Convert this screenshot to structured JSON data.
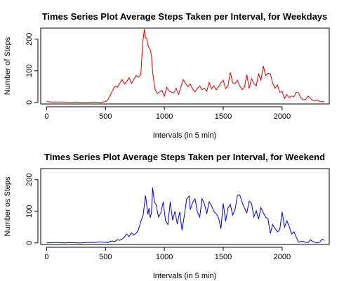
{
  "chart_data": [
    {
      "type": "line",
      "title": "Times Series Plot Average Steps Taken per Interval, for Weekdays",
      "xlabel": "Intervals (in 5 min)",
      "ylabel": "Number of Steps",
      "xlim": [
        -50,
        2400
      ],
      "ylim": [
        -5,
        235
      ],
      "xticks": [
        0,
        500,
        1000,
        1500,
        2000
      ],
      "yticks": [
        0,
        100,
        200
      ],
      "color": "#d40000",
      "series": [
        {
          "x": [
            0,
            50,
            100,
            150,
            200,
            250,
            300,
            350,
            400,
            450,
            500,
            520,
            540,
            560,
            580,
            600,
            620,
            640,
            660,
            680,
            700,
            720,
            740,
            760,
            780,
            800,
            815,
            830,
            840,
            850,
            860,
            870,
            880,
            890,
            900,
            920,
            940,
            960,
            980,
            1000,
            1020,
            1040,
            1060,
            1080,
            1100,
            1120,
            1140,
            1160,
            1180,
            1200,
            1220,
            1240,
            1260,
            1280,
            1300,
            1320,
            1340,
            1360,
            1380,
            1400,
            1420,
            1440,
            1460,
            1480,
            1500,
            1520,
            1540,
            1560,
            1580,
            1600,
            1620,
            1640,
            1660,
            1680,
            1700,
            1720,
            1740,
            1760,
            1780,
            1800,
            1820,
            1840,
            1860,
            1880,
            1900,
            1920,
            1940,
            1960,
            1980,
            2000,
            2020,
            2040,
            2060,
            2080,
            2100,
            2120,
            2140,
            2160,
            2180,
            2200,
            2220,
            2240,
            2260,
            2280,
            2300,
            2320,
            2340,
            2355
          ],
          "y": [
            2,
            1,
            1,
            1,
            0,
            1,
            0,
            0,
            1,
            0,
            2,
            8,
            22,
            38,
            52,
            48,
            60,
            72,
            58,
            66,
            78,
            60,
            72,
            85,
            80,
            88,
            182,
            232,
            205,
            202,
            182,
            172,
            168,
            148,
            96,
            42,
            28,
            34,
            38,
            20,
            48,
            36,
            32,
            30,
            45,
            25,
            48,
            72,
            60,
            50,
            58,
            42,
            33,
            44,
            52,
            40,
            45,
            35,
            63,
            43,
            52,
            40,
            50,
            62,
            70,
            44,
            52,
            95,
            62,
            60,
            70,
            52,
            40,
            48,
            88,
            44,
            75,
            60,
            52,
            90,
            70,
            115,
            85,
            92,
            90,
            60,
            45,
            55,
            32,
            34,
            12,
            25,
            15,
            20,
            18,
            32,
            30,
            14,
            8,
            10,
            20,
            12,
            6,
            4,
            8,
            2,
            2,
            3
          ]
        }
      ]
    },
    {
      "type": "line",
      "title": "Times Series Plot Average Steps Taken per Interval, for Weekend",
      "xlabel": "Intervals (in 5 min)",
      "ylabel": "Number os Steps",
      "xlim": [
        -50,
        2400
      ],
      "ylim": [
        -5,
        235
      ],
      "xticks": [
        0,
        500,
        1000,
        1500,
        2000
      ],
      "yticks": [
        0,
        100,
        200
      ],
      "color": "#0000cc",
      "series": [
        {
          "x": [
            0,
            50,
            100,
            150,
            200,
            250,
            300,
            350,
            400,
            450,
            500,
            520,
            540,
            560,
            580,
            600,
            620,
            640,
            660,
            680,
            700,
            720,
            740,
            760,
            780,
            800,
            820,
            840,
            850,
            860,
            870,
            880,
            890,
            900,
            915,
            930,
            950,
            970,
            990,
            1010,
            1030,
            1050,
            1070,
            1090,
            1110,
            1130,
            1150,
            1170,
            1190,
            1210,
            1220,
            1240,
            1260,
            1280,
            1300,
            1320,
            1340,
            1360,
            1380,
            1400,
            1420,
            1440,
            1460,
            1480,
            1500,
            1520,
            1540,
            1560,
            1580,
            1600,
            1620,
            1640,
            1660,
            1680,
            1700,
            1720,
            1740,
            1760,
            1780,
            1800,
            1820,
            1840,
            1860,
            1880,
            1900,
            1920,
            1940,
            1960,
            1980,
            2000,
            2020,
            2040,
            2060,
            2080,
            2100,
            2120,
            2140,
            2160,
            2180,
            2200,
            2220,
            2240,
            2260,
            2280,
            2300,
            2320,
            2340,
            2355
          ],
          "y": [
            0,
            1,
            1,
            0,
            1,
            0,
            0,
            2,
            1,
            3,
            2,
            1,
            5,
            6,
            4,
            10,
            8,
            12,
            18,
            28,
            20,
            32,
            25,
            30,
            42,
            68,
            88,
            150,
            120,
            90,
            110,
            80,
            95,
            175,
            130,
            120,
            82,
            95,
            130,
            70,
            58,
            130,
            72,
            100,
            60,
            98,
            40,
            88,
            140,
            148,
            105,
            128,
            140,
            98,
            82,
            140,
            124,
            92,
            130,
            118,
            100,
            92,
            80,
            45,
            125,
            68,
            110,
            122,
            88,
            105,
            150,
            152,
            128,
            110,
            95,
            132,
            125,
            82,
            102,
            75,
            112,
            95,
            82,
            75,
            30,
            58,
            45,
            35,
            42,
            98,
            50,
            70,
            52,
            28,
            35,
            18,
            2,
            5,
            4,
            2,
            1,
            10,
            4,
            2,
            0,
            3,
            12,
            8
          ]
        }
      ]
    }
  ]
}
